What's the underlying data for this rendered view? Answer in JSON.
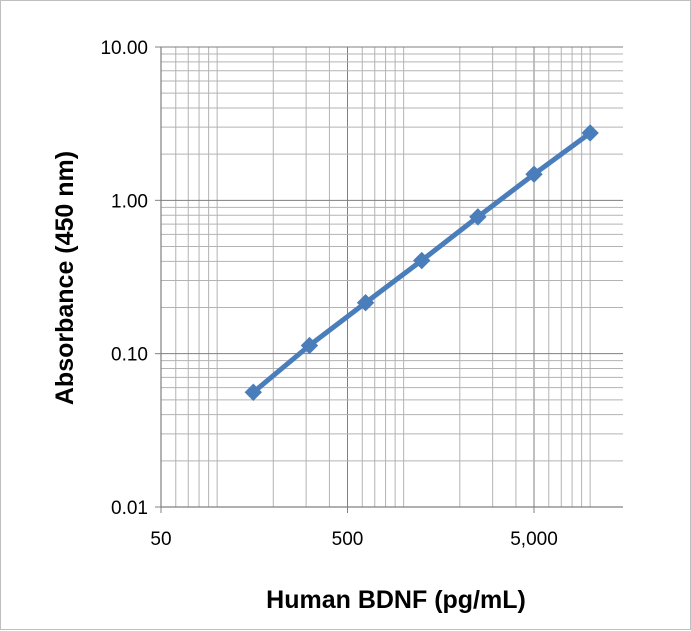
{
  "chart_data": {
    "type": "line",
    "title": "",
    "xlabel": "Human BDNF (pg/mL)",
    "ylabel": "Absorbance (450 nm)",
    "x_scale": "log",
    "y_scale": "log",
    "xlim": [
      50,
      15000
    ],
    "ylim": [
      0.01,
      10
    ],
    "x_tick_values": [
      50,
      500,
      5000
    ],
    "x_tick_labels": [
      "50",
      "500",
      "5,000"
    ],
    "y_tick_values": [
      0.01,
      0.1,
      1,
      10
    ],
    "y_tick_labels": [
      "0.01",
      "0.10",
      "1.00",
      "10.00"
    ],
    "grid": true,
    "legend": "none",
    "series": [
      {
        "color": "#4a7ebb",
        "marker": "diamond",
        "x": [
          156.25,
          312.5,
          625,
          1250,
          2500,
          5000,
          10000
        ],
        "y": [
          0.056,
          0.113,
          0.215,
          0.405,
          0.78,
          1.48,
          2.75
        ]
      }
    ]
  }
}
